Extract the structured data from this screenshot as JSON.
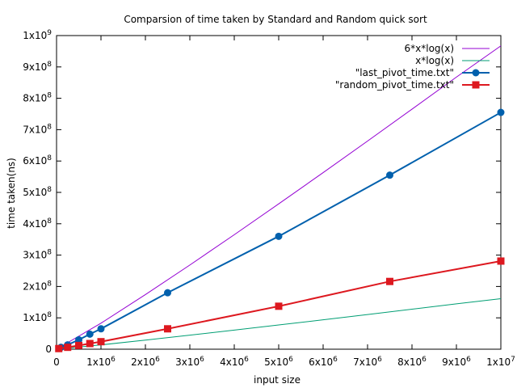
{
  "chart_data": {
    "type": "line",
    "title": "Comparsion of time taken by Standard and Random quick sort",
    "xlabel": "input size",
    "ylabel": "time taken(ns)",
    "xlim": [
      0,
      10000000
    ],
    "ylim": [
      0,
      1000000000
    ],
    "x_ticks": [
      {
        "value": 0,
        "base": "0",
        "exp": ""
      },
      {
        "value": 1000000,
        "base": "1x10",
        "exp": "6"
      },
      {
        "value": 2000000,
        "base": "2x10",
        "exp": "6"
      },
      {
        "value": 3000000,
        "base": "3x10",
        "exp": "6"
      },
      {
        "value": 4000000,
        "base": "4x10",
        "exp": "6"
      },
      {
        "value": 5000000,
        "base": "5x10",
        "exp": "6"
      },
      {
        "value": 6000000,
        "base": "6x10",
        "exp": "6"
      },
      {
        "value": 7000000,
        "base": "7x10",
        "exp": "6"
      },
      {
        "value": 8000000,
        "base": "8x10",
        "exp": "6"
      },
      {
        "value": 9000000,
        "base": "9x10",
        "exp": "6"
      },
      {
        "value": 10000000,
        "base": "1x10",
        "exp": "7"
      }
    ],
    "y_ticks": [
      {
        "value": 0,
        "base": "0",
        "exp": ""
      },
      {
        "value": 100000000,
        "base": "1x10",
        "exp": "8"
      },
      {
        "value": 200000000,
        "base": "2x10",
        "exp": "8"
      },
      {
        "value": 300000000,
        "base": "3x10",
        "exp": "8"
      },
      {
        "value": 400000000,
        "base": "4x10",
        "exp": "8"
      },
      {
        "value": 500000000,
        "base": "5x10",
        "exp": "8"
      },
      {
        "value": 600000000,
        "base": "6x10",
        "exp": "8"
      },
      {
        "value": 700000000,
        "base": "7x10",
        "exp": "8"
      },
      {
        "value": 800000000,
        "base": "8x10",
        "exp": "8"
      },
      {
        "value": 900000000,
        "base": "9x10",
        "exp": "8"
      },
      {
        "value": 1000000000,
        "base": "1x10",
        "exp": "9"
      }
    ],
    "grid": false,
    "legend_position": "top-right",
    "series": [
      {
        "name": "6*x*log(x)",
        "color": "#9400d3",
        "style": "thin-line",
        "marker": "none",
        "x": [
          0,
          1000000,
          2000000,
          3000000,
          4000000,
          5000000,
          6000000,
          7000000,
          8000000,
          9000000,
          10000000
        ],
        "y": [
          0,
          82900000,
          174100000,
          268400000,
          365000000,
          463400000,
          563000000,
          663700000,
          765300000,
          867600000,
          967100000
        ]
      },
      {
        "name": "x*log(x)",
        "color": "#009e73",
        "style": "thin-line",
        "marker": "none",
        "x": [
          0,
          1000000,
          2000000,
          3000000,
          4000000,
          5000000,
          6000000,
          7000000,
          8000000,
          9000000,
          10000000
        ],
        "y": [
          0,
          13800000,
          29000000,
          44700000,
          60800000,
          77200000,
          93800000,
          110600000,
          127500000,
          144600000,
          161200000
        ]
      },
      {
        "name": "\"last_pivot_time.txt\"",
        "color": "#0060ad",
        "style": "thick-line",
        "marker": "circle",
        "x": [
          100000,
          250000,
          500000,
          750000,
          1000000,
          2500000,
          5000000,
          7500000,
          10000000
        ],
        "y": [
          6000000,
          14000000,
          30000000,
          48000000,
          65000000,
          180000000,
          360000000,
          555000000,
          755000000
        ]
      },
      {
        "name": "\"random_pivot_time.txt\"",
        "color": "#dd181f",
        "style": "thick-line",
        "marker": "square",
        "x": [
          50000,
          250000,
          500000,
          750000,
          1000000,
          2500000,
          5000000,
          7500000,
          10000000
        ],
        "y": [
          2000000,
          6000000,
          12000000,
          18000000,
          24000000,
          65000000,
          137000000,
          216000000,
          281000000
        ]
      }
    ]
  }
}
